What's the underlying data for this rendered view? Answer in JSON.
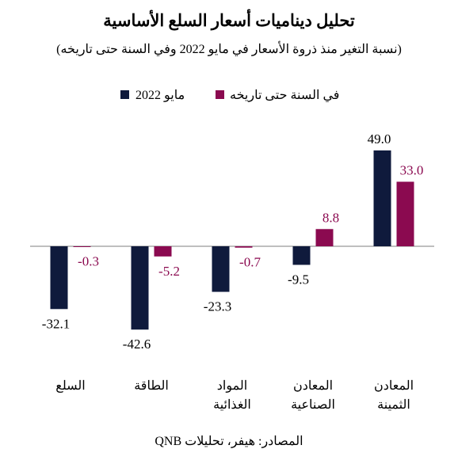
{
  "chart_data": {
    "type": "bar",
    "title": "تحليل ديناميات أسعار السلع الأساسية",
    "subtitle": "(نسبة التغير منذ ذروة الأسعار في مايو 2022 وفي السنة حتى تاريخه)",
    "source": "المصادر: هيفر، تحليلات QNB",
    "categories": [
      "السلع",
      "الطاقة",
      "المواد الغذائية",
      "المعادن الصناعية",
      "المعادن الثمينة"
    ],
    "series": [
      {
        "name": "مايو 2022",
        "color": "#0f1a3c",
        "values": [
          -32.1,
          -42.6,
          -23.3,
          -9.5,
          49.0
        ]
      },
      {
        "name": "في السنة حتى تاريخه",
        "color": "#8b0a50",
        "values": [
          -0.3,
          -5.2,
          -0.7,
          8.8,
          33.0
        ]
      }
    ],
    "ylim": [
      -45,
      52
    ],
    "legend_position": "top",
    "grid": false,
    "label_colors": [
      "#000000",
      "#8b0a50"
    ]
  }
}
